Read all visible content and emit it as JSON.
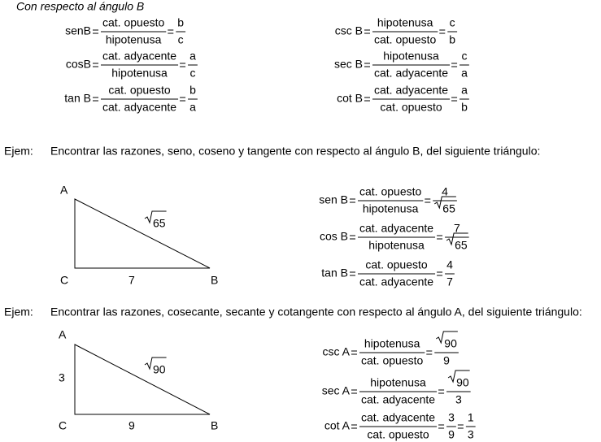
{
  "heading": "Con respecto al ángulo B",
  "definitions": [
    {
      "label": "senB",
      "fractions": [
        {
          "num": "cat. opuesto",
          "den": "hipotenusa"
        },
        {
          "num": "b",
          "den": "c"
        }
      ]
    },
    {
      "label": "cosB",
      "fractions": [
        {
          "num": "cat. adyacente",
          "den": "hipotenusa"
        },
        {
          "num": "a",
          "den": "c"
        }
      ]
    },
    {
      "label": "tan B",
      "fractions": [
        {
          "num": "cat. opuesto",
          "den": "cat. adyacente"
        },
        {
          "num": "b",
          "den": "a"
        }
      ]
    },
    {
      "label": "csc B",
      "fractions": [
        {
          "num": "hipotenusa",
          "den": "cat. opuesto"
        },
        {
          "num": "c",
          "den": "b"
        }
      ]
    },
    {
      "label": "sec B",
      "fractions": [
        {
          "num": "hipotenusa",
          "den": "cat. adyacente"
        },
        {
          "num": "c",
          "den": "a"
        }
      ]
    },
    {
      "label": "cot B",
      "fractions": [
        {
          "num": "cat. adyacente",
          "den": "cat. opuesto"
        },
        {
          "num": "a",
          "den": "b"
        }
      ]
    }
  ],
  "examples": [
    {
      "prefix": "Ejem:",
      "text": "Encontrar las razones, seno, coseno y tangente con respecto al ángulo B, del siguiente triángulo:",
      "triangle": {
        "a": "A",
        "b": "B",
        "c": "C",
        "base": "7",
        "hyp": "65",
        "hyp_root": true
      },
      "results": [
        {
          "label": "sen B",
          "fractions": [
            {
              "num": "cat. opuesto",
              "den": "hipotenusa"
            },
            {
              "num": "4",
              "den": "65",
              "den_root": true
            }
          ]
        },
        {
          "label": "cos B",
          "fractions": [
            {
              "num": "cat. adyacente",
              "den": "hipotenusa"
            },
            {
              "num": "7",
              "den": "65",
              "den_root": true
            }
          ]
        },
        {
          "label": "tan B",
          "fractions": [
            {
              "num": "cat. opuesto",
              "den": "cat. adyacente"
            },
            {
              "num": "4",
              "den": "7"
            }
          ]
        }
      ]
    },
    {
      "prefix": "Ejem:",
      "text": "Encontrar las razones, cosecante, secante y cotangente con respecto al ángulo A, del siguiente triángulo:",
      "triangle": {
        "a": "A",
        "b": "B",
        "c": "C",
        "base": "9",
        "side": "3",
        "hyp": "90",
        "hyp_root": true
      },
      "results": [
        {
          "label": "csc A",
          "fractions": [
            {
              "num": "hipotenusa",
              "den": "cat. opuesto"
            },
            {
              "num": "90",
              "den": "9",
              "num_root": true
            }
          ]
        },
        {
          "label": "sec A",
          "fractions": [
            {
              "num": "hipotenusa",
              "den": "cat. adyacente"
            },
            {
              "num": "90",
              "den": "3",
              "num_root": true
            }
          ]
        },
        {
          "label": "cot A",
          "fractions": [
            {
              "num": "cat. adyacente",
              "den": "cat. opuesto"
            },
            {
              "num": "3",
              "den": "9"
            },
            {
              "num": "1",
              "den": "3"
            }
          ]
        }
      ]
    }
  ]
}
